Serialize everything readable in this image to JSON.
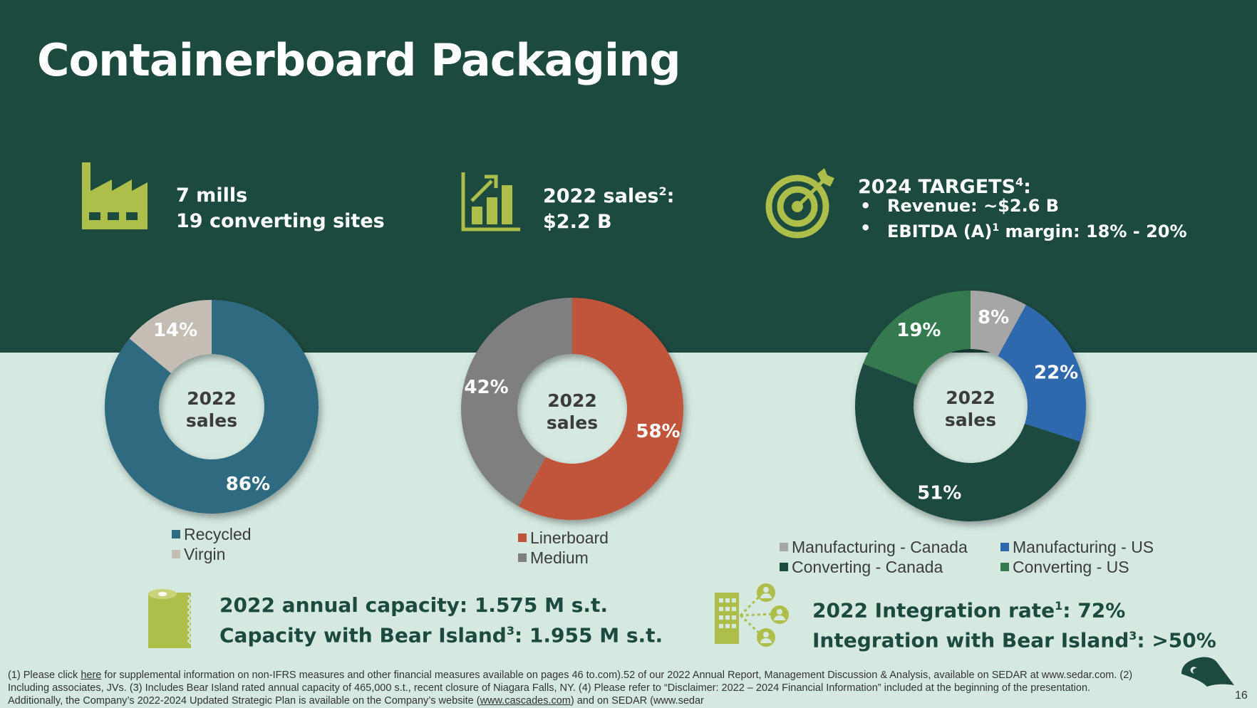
{
  "slide": {
    "title": "Containerboard Packaging",
    "page_number": "16"
  },
  "kpis": {
    "mills_line1": "7 mills",
    "mills_line2": "19 converting sites",
    "sales_line1": "2022 sales",
    "sales_sup": "2",
    "sales_line1_suffix": ":",
    "sales_line2": "$2.2 B",
    "targets_title": "2024 TARGETS",
    "targets_sup": "4",
    "targets_title_suffix": ":",
    "target_revenue": "Revenue: ~$2.6 B",
    "target_ebitda_pre": "EBITDA (A)",
    "target_ebitda_sup": "1",
    "target_ebitda_post": " margin: 18% - 20%"
  },
  "chart_data": [
    {
      "type": "pie",
      "center_label_1": "2022",
      "center_label_2": "sales",
      "categories": [
        "Recycled",
        "Virgin"
      ],
      "values": [
        86,
        14
      ],
      "labels": [
        "86%",
        "14%"
      ],
      "colors": [
        "#2e6b80",
        "#c3bdb3"
      ]
    },
    {
      "type": "pie",
      "center_label_1": "2022",
      "center_label_2": "sales",
      "categories": [
        "Linerboard",
        "Medium"
      ],
      "values": [
        58,
        42
      ],
      "labels": [
        "58%",
        "42%"
      ],
      "colors": [
        "#c0543a",
        "#7f7f7f"
      ]
    },
    {
      "type": "pie",
      "center_label_1": "2022",
      "center_label_2": "sales",
      "categories": [
        "Manufacturing - Canada",
        "Manufacturing - US",
        "Converting - Canada",
        "Converting - US"
      ],
      "values": [
        8,
        22,
        51,
        19
      ],
      "labels": [
        "8%",
        "22%",
        "51%",
        "19%"
      ],
      "colors": [
        "#a6a6a6",
        "#2f69ad",
        "#1d4a3f",
        "#367a4f"
      ]
    }
  ],
  "capacity": {
    "line1": "2022 annual capacity: 1.575 M s.t.",
    "line2_pre": "Capacity with Bear Island",
    "line2_sup": "3",
    "line2_post": ": 1.955 M s.t."
  },
  "integration": {
    "line1_pre": "2022 Integration rate",
    "line1_sup": "1",
    "line1_post": ": 72%",
    "line2_pre": "Integration with Bear Island",
    "line2_sup": "3",
    "line2_post": ": >50%"
  },
  "footnote": {
    "p1": "(1) Please click ",
    "link_here": "here",
    "p2": " for supplemental information on non-IFRS measures and other financial measures available on pages 46 to.com).52 of our 2022 Annual Report, Management Discussion & Analysis, available on SEDAR at www.sedar.com.     (2) Including associates, JVs. (3) Includes Bear Island rated annual capacity of 465,000 s.t., recent closure of Niagara Falls, NY. (4) Please refer to “Disclaimer: 2022 – 2024 Financial Information” included at the beginning of the presentation. Additionally, the Company’s 2022-2024 Updated Strategic Plan is available on the Company’s website (",
    "link_site": "www.cascades.com",
    "p3": ") and on SEDAR (www.sedar"
  },
  "colors": {
    "dark_green": "#1d4a3f",
    "light_bg": "#d5e9e1",
    "icon_green": "#adbe4a"
  },
  "icons": [
    "factory-icon",
    "bar-chart-icon",
    "target-icon",
    "paper-roll-icon",
    "network-icon",
    "logo-icon"
  ]
}
